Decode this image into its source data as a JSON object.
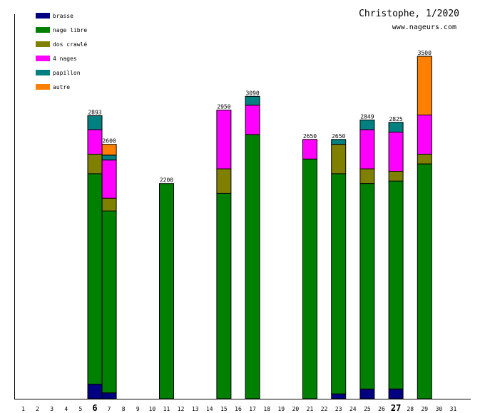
{
  "chart_data": {
    "type": "bar",
    "stacked": true,
    "title": "Christophe, 1/2020",
    "subtitle": "www.nageurs.com",
    "xlabel": "",
    "ylabel": "",
    "ylim": [
      0,
      3700
    ],
    "grid": false,
    "legend_position": "top-left",
    "categories": [
      "1",
      "2",
      "3",
      "4",
      "5",
      "6",
      "7",
      "8",
      "9",
      "10",
      "11",
      "12",
      "13",
      "14",
      "15",
      "16",
      "17",
      "18",
      "19",
      "20",
      "21",
      "22",
      "23",
      "24",
      "25",
      "26",
      "27",
      "28",
      "29",
      "30",
      "31"
    ],
    "highlighted_categories": [
      "6",
      "27"
    ],
    "series": [
      {
        "name": "brasse",
        "color": "#000080",
        "values": [
          0,
          0,
          0,
          0,
          0,
          150,
          60,
          0,
          0,
          0,
          0,
          0,
          0,
          0,
          0,
          0,
          0,
          0,
          0,
          0,
          0,
          0,
          50,
          0,
          100,
          0,
          100,
          0,
          0,
          0,
          0
        ]
      },
      {
        "name": "nage libre",
        "color": "#008000",
        "values": [
          0,
          0,
          0,
          0,
          0,
          2150,
          1860,
          0,
          0,
          0,
          2200,
          0,
          0,
          0,
          2100,
          0,
          2700,
          0,
          0,
          0,
          2450,
          0,
          2250,
          0,
          2100,
          0,
          2125,
          0,
          2400,
          0,
          0
        ]
      },
      {
        "name": "dos crawlé",
        "color": "#808000",
        "values": [
          0,
          0,
          0,
          0,
          0,
          200,
          130,
          0,
          0,
          0,
          0,
          0,
          0,
          0,
          250,
          0,
          0,
          0,
          0,
          0,
          0,
          0,
          300,
          0,
          150,
          0,
          100,
          0,
          100,
          0,
          0
        ]
      },
      {
        "name": "4 nages",
        "color": "#ff00ff",
        "values": [
          0,
          0,
          0,
          0,
          0,
          250,
          390,
          0,
          0,
          0,
          0,
          0,
          0,
          0,
          600,
          0,
          300,
          0,
          0,
          0,
          200,
          0,
          0,
          0,
          400,
          0,
          400,
          0,
          400,
          0,
          0
        ]
      },
      {
        "name": "papillon",
        "color": "#008080",
        "values": [
          0,
          0,
          0,
          0,
          0,
          143,
          50,
          0,
          0,
          0,
          0,
          0,
          0,
          0,
          0,
          0,
          90,
          0,
          0,
          0,
          0,
          0,
          50,
          0,
          99,
          0,
          100,
          0,
          0,
          0,
          0
        ]
      },
      {
        "name": "autre",
        "color": "#ff8000",
        "values": [
          0,
          0,
          0,
          0,
          0,
          0,
          110,
          0,
          0,
          0,
          0,
          0,
          0,
          0,
          0,
          0,
          0,
          0,
          0,
          0,
          0,
          0,
          0,
          0,
          0,
          0,
          0,
          0,
          600,
          0,
          0
        ]
      }
    ],
    "totals": {
      "6": 2893,
      "7": 2600,
      "11": 2200,
      "15": 2950,
      "17": 3090,
      "21": 2650,
      "23": 2650,
      "25": 2849,
      "27": 2825,
      "29": 3500
    }
  }
}
